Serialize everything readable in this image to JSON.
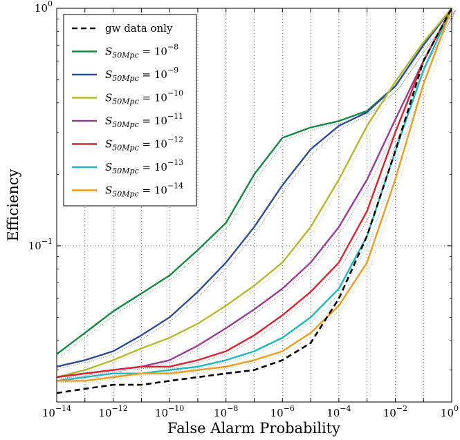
{
  "chart_data": {
    "type": "line",
    "title": "",
    "xlabel": "False Alarm Probability",
    "ylabel": "Efficiency",
    "x_scale": "log",
    "y_scale": "log",
    "xlim": [
      1e-14,
      1
    ],
    "ylim": [
      0.022,
      1
    ],
    "grid": true,
    "legend_position": "top-left",
    "x_ticks": [
      {
        "value": 1e-14,
        "base": "10",
        "exp": "−14"
      },
      {
        "value": 1e-12,
        "base": "10",
        "exp": "−12"
      },
      {
        "value": 1e-10,
        "base": "10",
        "exp": "−10"
      },
      {
        "value": 1e-08,
        "base": "10",
        "exp": "−8"
      },
      {
        "value": 1e-06,
        "base": "10",
        "exp": "−6"
      },
      {
        "value": 0.0001,
        "base": "10",
        "exp": "−4"
      },
      {
        "value": 0.01,
        "base": "10",
        "exp": "−2"
      },
      {
        "value": 1,
        "base": "10",
        "exp": "0"
      }
    ],
    "y_ticks": [
      {
        "value": 0.1,
        "base": "10",
        "exp": "−1"
      },
      {
        "value": 1,
        "base": "10",
        "exp": "0"
      }
    ],
    "series": [
      {
        "name": "gw data only",
        "label_base": "",
        "label_sub": "",
        "label_rest": "",
        "label_exp": "",
        "color": "#000000",
        "dashed": true,
        "x": [
          1e-14,
          1e-13,
          1e-12,
          1e-11,
          1e-10,
          1e-09,
          1e-08,
          1e-07,
          1e-06,
          1e-05,
          0.0001,
          0.001,
          0.01,
          0.1,
          1
        ],
        "y": [
          0.024,
          0.025,
          0.026,
          0.026,
          0.027,
          0.028,
          0.029,
          0.03,
          0.033,
          0.039,
          0.06,
          0.11,
          0.25,
          0.6,
          1.0
        ]
      },
      {
        "name": "S50Mpc = 10^-8",
        "label_base": "S",
        "label_sub": "50Mpc",
        "label_rest": " = 10",
        "label_exp": "−8",
        "color": "#138a3f",
        "dashed": false,
        "x": [
          1e-14,
          1e-13,
          1e-12,
          1e-11,
          1e-10,
          1e-09,
          1e-08,
          1e-07,
          1e-06,
          1e-05,
          0.0001,
          0.001,
          0.01,
          0.1,
          1
        ],
        "y": [
          0.035,
          0.043,
          0.053,
          0.063,
          0.075,
          0.096,
          0.125,
          0.2,
          0.285,
          0.315,
          0.335,
          0.37,
          0.47,
          0.7,
          1.0
        ]
      },
      {
        "name": "S50Mpc = 10^-9",
        "label_base": "S",
        "label_sub": "50Mpc",
        "label_rest": " = 10",
        "label_exp": "−9",
        "color": "#2a4d9c",
        "dashed": false,
        "x": [
          1e-14,
          1e-13,
          1e-12,
          1e-11,
          1e-10,
          1e-09,
          1e-08,
          1e-07,
          1e-06,
          1e-05,
          0.0001,
          0.001,
          0.01,
          0.1,
          1
        ],
        "y": [
          0.031,
          0.033,
          0.036,
          0.042,
          0.05,
          0.064,
          0.085,
          0.12,
          0.18,
          0.255,
          0.32,
          0.365,
          0.47,
          0.7,
          1.0
        ]
      },
      {
        "name": "S50Mpc = 10^-10",
        "label_base": "S",
        "label_sub": "50Mpc",
        "label_rest": " = 10",
        "label_exp": "−10",
        "color": "#b5b82b",
        "dashed": false,
        "x": [
          1e-14,
          1e-13,
          1e-12,
          1e-11,
          1e-10,
          1e-09,
          1e-08,
          1e-07,
          1e-06,
          1e-05,
          0.0001,
          0.001,
          0.01,
          0.1,
          1
        ],
        "y": [
          0.028,
          0.03,
          0.033,
          0.037,
          0.041,
          0.047,
          0.056,
          0.068,
          0.085,
          0.12,
          0.19,
          0.32,
          0.49,
          0.72,
          1.0
        ]
      },
      {
        "name": "S50Mpc = 10^-11",
        "label_base": "S",
        "label_sub": "50Mpc",
        "label_rest": " = 10",
        "label_exp": "−11",
        "color": "#9b3a98",
        "dashed": false,
        "x": [
          1e-14,
          1e-13,
          1e-12,
          1e-11,
          1e-10,
          1e-09,
          1e-08,
          1e-07,
          1e-06,
          1e-05,
          0.0001,
          0.001,
          0.01,
          0.1,
          1
        ],
        "y": [
          0.028,
          0.029,
          0.03,
          0.031,
          0.033,
          0.038,
          0.045,
          0.054,
          0.066,
          0.085,
          0.12,
          0.19,
          0.34,
          0.6,
          1.0
        ]
      },
      {
        "name": "S50Mpc = 10^-12",
        "label_base": "S",
        "label_sub": "50Mpc",
        "label_rest": " = 10",
        "label_exp": "−12",
        "color": "#d9242f",
        "dashed": false,
        "x": [
          1e-14,
          1e-13,
          1e-12,
          1e-11,
          1e-10,
          1e-09,
          1e-08,
          1e-07,
          1e-06,
          1e-05,
          0.0001,
          0.001,
          0.01,
          0.1,
          1
        ],
        "y": [
          0.028,
          0.029,
          0.03,
          0.031,
          0.031,
          0.033,
          0.036,
          0.042,
          0.051,
          0.064,
          0.085,
          0.14,
          0.3,
          0.6,
          1.0
        ]
      },
      {
        "name": "S50Mpc = 10^-13",
        "label_base": "S",
        "label_sub": "50Mpc",
        "label_rest": " = 10",
        "label_exp": "−13",
        "color": "#1fb7bf",
        "dashed": false,
        "x": [
          1e-14,
          1e-13,
          1e-12,
          1e-11,
          1e-10,
          1e-09,
          1e-08,
          1e-07,
          1e-06,
          1e-05,
          0.0001,
          0.001,
          0.01,
          0.1,
          1
        ],
        "y": [
          0.027,
          0.028,
          0.029,
          0.029,
          0.03,
          0.031,
          0.033,
          0.036,
          0.041,
          0.05,
          0.066,
          0.11,
          0.25,
          0.55,
          1.0
        ]
      },
      {
        "name": "S50Mpc = 10^-14",
        "label_base": "S",
        "label_sub": "50Mpc",
        "label_rest": " = 10",
        "label_exp": "−14",
        "color": "#f39a1c",
        "dashed": false,
        "x": [
          1e-14,
          1e-13,
          1e-12,
          1e-11,
          1e-10,
          1e-09,
          1e-08,
          1e-07,
          1e-06,
          1e-05,
          0.0001,
          0.001,
          0.01,
          0.1,
          1
        ],
        "y": [
          0.027,
          0.027,
          0.028,
          0.029,
          0.029,
          0.03,
          0.031,
          0.033,
          0.036,
          0.043,
          0.056,
          0.085,
          0.19,
          0.48,
          1.0
        ]
      }
    ]
  }
}
